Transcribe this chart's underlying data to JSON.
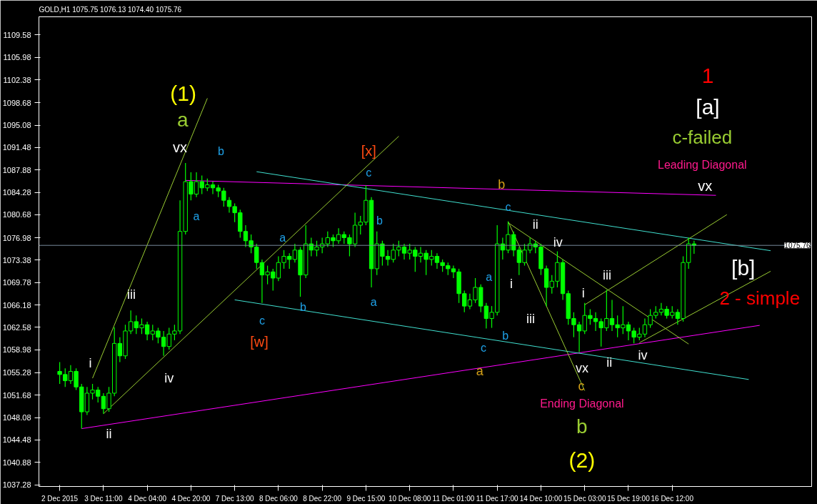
{
  "chart_data": {
    "type": "candlestick",
    "title": "GOLD,H1  1075.75 1076.13 1074.40 1075.76",
    "color": "#00ff00",
    "categories": [
      "2 Dec 2015",
      null,
      null,
      null,
      null,
      null,
      null,
      null,
      "3 Dec 11:00",
      null,
      null,
      null,
      null,
      null,
      null,
      null,
      "4 Dec 04:00",
      null,
      null,
      null,
      null,
      null,
      null,
      null,
      "4 Dec 20:00",
      null,
      null,
      null,
      null,
      null,
      null,
      null,
      "7 Dec 13:00",
      null,
      null,
      null,
      null,
      null,
      null,
      null,
      "8 Dec 06:00",
      null,
      null,
      null,
      null,
      null,
      null,
      null,
      "8 Dec 22:00",
      null,
      null,
      null,
      null,
      null,
      null,
      null,
      "9 Dec 15:00",
      null,
      null,
      null,
      null,
      null,
      null,
      null,
      "10 Dec 08:00",
      null,
      null,
      null,
      null,
      null,
      null,
      null,
      "11 Dec 01:00",
      null,
      null,
      null,
      null,
      null,
      null,
      null,
      "11 Dec 17:00",
      null,
      null,
      null,
      null,
      null,
      null,
      null,
      "14 Dec 10:00",
      null,
      null,
      null,
      null,
      null,
      null,
      null,
      "15 Dec 03:00",
      null,
      null,
      null,
      null,
      null,
      null,
      null,
      "15 Dec 19:00",
      null,
      null,
      null,
      null,
      null,
      null,
      null,
      "16 Dec 12:00",
      null,
      null,
      null,
      null,
      null,
      null,
      null,
      null,
      null,
      null,
      null,
      null,
      null,
      null,
      null,
      null,
      null,
      null
    ],
    "ohlc": [
      [
        1055.5,
        1057,
        1053.5,
        1055
      ],
      [
        1055,
        1056,
        1053,
        1054
      ],
      [
        1054,
        1056.5,
        1053.5,
        1055.5
      ],
      [
        1055.5,
        1056,
        1052.5,
        1053
      ],
      [
        1053,
        1053.5,
        1046.3,
        1049
      ],
      [
        1049,
        1053,
        1048.5,
        1052
      ],
      [
        1052,
        1053.5,
        1051,
        1052.5
      ],
      [
        1052.5,
        1053,
        1050.5,
        1051.5
      ],
      [
        1051.5,
        1052,
        1048.7,
        1049.5
      ],
      [
        1049.5,
        1053,
        1049,
        1052
      ],
      [
        1052,
        1062.6,
        1051.5,
        1060
      ],
      [
        1060,
        1061,
        1057,
        1058
      ],
      [
        1058,
        1063,
        1057.5,
        1062
      ],
      [
        1062,
        1065.3,
        1061.5,
        1063.5
      ],
      [
        1063.5,
        1064.5,
        1061.5,
        1062.5
      ],
      [
        1062.5,
        1064,
        1061.5,
        1063
      ],
      [
        1063,
        1063.5,
        1060.5,
        1061.5
      ],
      [
        1061.5,
        1063,
        1060.5,
        1062
      ],
      [
        1062,
        1062.5,
        1060,
        1061
      ],
      [
        1061,
        1062,
        1058,
        1059.5
      ],
      [
        1059.5,
        1062.5,
        1059,
        1061.5
      ],
      [
        1061.5,
        1063,
        1060.5,
        1062
      ],
      [
        1062,
        1083,
        1061.5,
        1078
      ],
      [
        1078,
        1089,
        1077.5,
        1086
      ],
      [
        1086,
        1087.5,
        1083,
        1084
      ],
      [
        1084,
        1087.5,
        1083.5,
        1086
      ],
      [
        1086,
        1087,
        1084,
        1085
      ],
      [
        1085,
        1086.5,
        1084.5,
        1085.5
      ],
      [
        1085.5,
        1086,
        1084,
        1085
      ],
      [
        1085,
        1085.5,
        1083.5,
        1084.5
      ],
      [
        1084.5,
        1085,
        1082,
        1083
      ],
      [
        1083,
        1083.5,
        1081,
        1082
      ],
      [
        1082,
        1082.5,
        1079.5,
        1081
      ],
      [
        1081,
        1081.5,
        1077,
        1078
      ],
      [
        1078,
        1079,
        1075.5,
        1076.5
      ],
      [
        1076.5,
        1077.5,
        1074.5,
        1075.5
      ],
      [
        1075.5,
        1076,
        1072,
        1073
      ],
      [
        1073,
        1073.5,
        1066.5,
        1071
      ],
      [
        1071,
        1072.5,
        1069.5,
        1071.5
      ],
      [
        1071.5,
        1072,
        1068.5,
        1070.5
      ],
      [
        1070.5,
        1074,
        1070,
        1073
      ],
      [
        1073,
        1075,
        1072,
        1074
      ],
      [
        1074,
        1074.5,
        1072,
        1073.5
      ],
      [
        1073.5,
        1076,
        1073,
        1075
      ],
      [
        1075,
        1075.5,
        1067.5,
        1071
      ],
      [
        1071,
        1079,
        1070.5,
        1076
      ],
      [
        1076,
        1077,
        1074,
        1075
      ],
      [
        1075,
        1076.5,
        1074,
        1075.5
      ],
      [
        1075.5,
        1077,
        1074.5,
        1076
      ],
      [
        1076,
        1078,
        1075.5,
        1077
      ],
      [
        1077,
        1077.5,
        1075.5,
        1076.5
      ],
      [
        1076.5,
        1078.5,
        1076,
        1077.5
      ],
      [
        1077.5,
        1078,
        1076,
        1077
      ],
      [
        1077,
        1077.5,
        1074,
        1076
      ],
      [
        1076,
        1081,
        1075.5,
        1079
      ],
      [
        1079,
        1080.5,
        1077.5,
        1079.5
      ],
      [
        1079.5,
        1085.4,
        1079,
        1083
      ],
      [
        1083,
        1083.5,
        1069,
        1072
      ],
      [
        1072,
        1078,
        1071,
        1076
      ],
      [
        1076,
        1076.5,
        1072.5,
        1074
      ],
      [
        1074,
        1075,
        1072.5,
        1073.5
      ],
      [
        1073.5,
        1076,
        1073,
        1075
      ],
      [
        1075,
        1076.5,
        1074,
        1075.5
      ],
      [
        1075.5,
        1076,
        1073.5,
        1074.5
      ],
      [
        1074.5,
        1076,
        1073.5,
        1075
      ],
      [
        1075,
        1075.5,
        1071.5,
        1074
      ],
      [
        1074,
        1075.5,
        1073,
        1074.5
      ],
      [
        1074.5,
        1075,
        1071,
        1073.5
      ],
      [
        1073.5,
        1075,
        1072.5,
        1074
      ],
      [
        1074,
        1074.5,
        1072,
        1073
      ],
      [
        1073,
        1073.5,
        1071.5,
        1072.5
      ],
      [
        1072.5,
        1073,
        1071,
        1072
      ],
      [
        1072,
        1072.5,
        1070.5,
        1071.5
      ],
      [
        1071.5,
        1072,
        1066.5,
        1068
      ],
      [
        1068,
        1068.5,
        1065,
        1066
      ],
      [
        1066,
        1068,
        1065.5,
        1067
      ],
      [
        1067,
        1070.5,
        1066.5,
        1069
      ],
      [
        1069,
        1069.5,
        1065,
        1066
      ],
      [
        1066,
        1066.5,
        1062.4,
        1064
      ],
      [
        1064,
        1066,
        1062.5,
        1065
      ],
      [
        1065,
        1079,
        1064.5,
        1076
      ],
      [
        1076,
        1077,
        1073.5,
        1075
      ],
      [
        1075,
        1079.6,
        1074.5,
        1077.5
      ],
      [
        1077.5,
        1078,
        1074,
        1075
      ],
      [
        1075,
        1075.5,
        1071,
        1073
      ],
      [
        1073,
        1076,
        1072.5,
        1075
      ],
      [
        1075,
        1077,
        1074.5,
        1076
      ],
      [
        1076,
        1076.5,
        1074.5,
        1075.5
      ],
      [
        1075.5,
        1076,
        1071,
        1072
      ],
      [
        1072,
        1072.5,
        1066,
        1069
      ],
      [
        1069,
        1071,
        1068,
        1070
      ],
      [
        1070,
        1074.8,
        1069,
        1073
      ],
      [
        1073,
        1073.5,
        1067,
        1068
      ],
      [
        1068,
        1068.5,
        1063,
        1064
      ],
      [
        1064,
        1065,
        1061,
        1063
      ],
      [
        1063,
        1063.5,
        1058.6,
        1062
      ],
      [
        1062,
        1066.5,
        1061.5,
        1064.5
      ],
      [
        1064.5,
        1065.5,
        1063,
        1064
      ],
      [
        1064,
        1065,
        1062,
        1063.5
      ],
      [
        1063.5,
        1064,
        1059.5,
        1062.5
      ],
      [
        1062.5,
        1068.6,
        1062,
        1064
      ],
      [
        1064,
        1067,
        1062,
        1063
      ],
      [
        1063,
        1064.5,
        1061,
        1062.5
      ],
      [
        1062.5,
        1066,
        1061.5,
        1063
      ],
      [
        1063,
        1063.5,
        1060.5,
        1062
      ],
      [
        1062,
        1062.5,
        1060,
        1061
      ],
      [
        1061,
        1062.5,
        1060.5,
        1061.5
      ],
      [
        1061.5,
        1064,
        1061,
        1063
      ],
      [
        1063,
        1065.5,
        1062.5,
        1064.5
      ],
      [
        1064.5,
        1066,
        1064,
        1065
      ],
      [
        1065,
        1066.5,
        1064.5,
        1065.5
      ],
      [
        1065.5,
        1066,
        1064,
        1064.5
      ],
      [
        1064.5,
        1066,
        1064,
        1065
      ],
      [
        1065,
        1065.5,
        1063,
        1064
      ],
      [
        1064,
        1074,
        1063.5,
        1073
      ],
      [
        1073,
        1077,
        1072,
        1076
      ],
      [
        1076,
        1076.5,
        1074.4,
        1075.76
      ],
      null,
      null,
      null,
      null,
      null,
      null,
      null,
      null,
      null,
      null,
      null,
      null,
      null,
      null
    ],
    "series": [
      {
        "type": "line",
        "color": "#ff00ff",
        "values": [
          null,
          null,
          null,
          null,
          1046.3,
          null,
          null,
          null,
          null,
          null,
          null,
          null,
          null,
          null,
          null,
          null,
          null,
          null,
          null,
          null,
          null,
          null,
          null,
          null,
          null,
          null,
          null,
          null,
          null,
          null,
          null,
          null,
          null,
          null,
          null,
          null,
          null,
          null,
          null,
          null,
          null,
          null,
          null,
          null,
          null,
          null,
          null,
          null,
          null,
          null,
          null,
          null,
          null,
          null,
          null,
          null,
          null,
          null,
          null,
          null,
          null,
          null,
          null,
          null,
          null,
          null,
          null,
          null,
          null,
          null,
          null,
          null,
          null,
          null,
          null,
          null,
          null,
          null,
          null,
          null,
          null,
          null,
          null,
          null,
          null,
          null,
          null,
          null,
          null,
          null,
          null,
          null,
          null,
          null,
          null,
          null,
          null,
          null,
          null,
          null,
          null,
          null,
          null,
          null,
          null,
          null,
          null,
          null,
          null,
          null,
          null,
          null,
          null,
          null,
          null,
          null,
          null,
          null,
          null,
          null,
          null,
          null,
          null,
          null,
          null,
          null,
          null,
          null,
          1062.9,
          null,
          null
        ]
      },
      {
        "type": "line",
        "color": "#ff00ff",
        "values": [
          null,
          null,
          null,
          null,
          null,
          null,
          null,
          null,
          null,
          null,
          null,
          null,
          null,
          null,
          null,
          null,
          null,
          null,
          null,
          null,
          null,
          null,
          null,
          1086.2,
          null,
          null,
          null,
          null,
          null,
          null,
          null,
          null,
          null,
          null,
          null,
          null,
          null,
          null,
          null,
          null,
          null,
          null,
          null,
          null,
          null,
          null,
          null,
          null,
          null,
          null,
          null,
          null,
          null,
          null,
          null,
          null,
          null,
          null,
          null,
          null,
          null,
          null,
          null,
          null,
          null,
          null,
          null,
          null,
          null,
          null,
          null,
          null,
          null,
          null,
          null,
          null,
          null,
          null,
          null,
          null,
          null,
          null,
          null,
          null,
          null,
          null,
          null,
          null,
          null,
          null,
          null,
          null,
          null,
          null,
          null,
          null,
          null,
          null,
          null,
          null,
          null,
          null,
          null,
          null,
          null,
          null,
          null,
          null,
          null,
          null,
          null,
          null,
          null,
          null,
          null,
          null,
          null,
          null,
          null,
          null,
          1083.8,
          null,
          null,
          null,
          null,
          null,
          null,
          null,
          null,
          null,
          null
        ]
      },
      {
        "type": "line",
        "color": "#40e0d0",
        "values": [
          null,
          null,
          null,
          null,
          null,
          null,
          null,
          null,
          null,
          null,
          null,
          null,
          null,
          null,
          null,
          null,
          null,
          null,
          null,
          null,
          null,
          null,
          null,
          null,
          null,
          null,
          null,
          null,
          null,
          null,
          null,
          null,
          null,
          null,
          null,
          null,
          1087.6,
          null,
          null,
          null,
          null,
          null,
          null,
          null,
          null,
          null,
          null,
          null,
          null,
          null,
          null,
          null,
          null,
          null,
          null,
          null,
          null,
          null,
          null,
          null,
          null,
          null,
          null,
          null,
          null,
          null,
          null,
          null,
          null,
          null,
          null,
          null,
          null,
          null,
          null,
          null,
          null,
          null,
          null,
          null,
          null,
          null,
          null,
          null,
          null,
          null,
          null,
          null,
          null,
          null,
          null,
          null,
          null,
          null,
          null,
          null,
          null,
          null,
          null,
          null,
          null,
          null,
          null,
          null,
          null,
          null,
          null,
          null,
          null,
          null,
          null,
          null,
          null,
          null,
          null,
          null,
          null,
          null,
          null,
          null,
          null,
          null,
          null,
          null,
          null,
          null,
          null,
          null,
          null,
          null,
          1074.9
        ]
      },
      {
        "type": "line",
        "color": "#40e0d0",
        "values": [
          null,
          null,
          null,
          null,
          null,
          null,
          null,
          null,
          null,
          null,
          null,
          null,
          null,
          null,
          null,
          null,
          null,
          null,
          null,
          null,
          null,
          null,
          null,
          null,
          null,
          null,
          null,
          null,
          null,
          null,
          null,
          null,
          1067.0,
          null,
          null,
          null,
          null,
          null,
          null,
          null,
          null,
          null,
          null,
          null,
          null,
          null,
          null,
          null,
          null,
          null,
          null,
          null,
          null,
          null,
          null,
          null,
          null,
          null,
          null,
          null,
          null,
          null,
          null,
          null,
          null,
          null,
          null,
          null,
          null,
          null,
          null,
          null,
          null,
          null,
          null,
          null,
          null,
          null,
          null,
          null,
          null,
          null,
          null,
          null,
          null,
          null,
          null,
          null,
          null,
          null,
          null,
          null,
          null,
          null,
          null,
          null,
          null,
          null,
          null,
          null,
          null,
          null,
          null,
          null,
          null,
          null,
          null,
          null,
          null,
          null,
          null,
          null,
          null,
          null,
          null,
          null,
          null,
          null,
          null,
          null,
          null,
          null,
          null,
          null,
          null,
          null,
          1054.2,
          null,
          null,
          null,
          null
        ]
      },
      {
        "type": "line",
        "color": "#9acd32",
        "values": [
          null,
          null,
          null,
          null,
          null,
          null,
          1054.4,
          null,
          null,
          null,
          null,
          null,
          null,
          null,
          null,
          null,
          null,
          null,
          null,
          null,
          null,
          null,
          null,
          null,
          null,
          null,
          null,
          1099.4,
          null,
          null,
          null,
          null,
          null,
          null,
          null,
          null,
          null,
          null,
          null,
          null,
          null,
          null,
          null,
          null,
          null,
          null,
          null,
          null,
          null,
          null,
          null,
          null,
          null,
          null,
          null,
          null,
          null,
          null,
          null,
          null,
          null,
          null,
          null,
          null,
          null,
          null,
          null,
          null,
          null,
          null,
          null,
          null,
          null,
          null,
          null,
          null,
          null,
          null,
          null,
          null,
          null,
          null,
          null,
          null,
          null,
          null,
          null,
          null,
          null,
          null,
          null,
          null,
          null,
          null,
          null,
          null,
          null,
          null,
          null,
          null,
          null,
          null,
          null,
          null,
          null,
          null,
          null,
          null,
          null,
          null,
          null,
          null,
          null,
          null,
          null,
          null,
          null,
          null,
          null,
          null,
          null,
          null,
          null,
          null,
          null,
          null,
          null,
          null,
          null,
          null,
          null
        ]
      },
      {
        "type": "line",
        "color": "#9acd32",
        "values": [
          null,
          null,
          null,
          null,
          null,
          null,
          null,
          null,
          1048.7,
          null,
          null,
          null,
          null,
          null,
          null,
          null,
          null,
          null,
          null,
          null,
          null,
          null,
          null,
          null,
          null,
          null,
          null,
          null,
          null,
          null,
          null,
          null,
          null,
          null,
          null,
          null,
          null,
          null,
          null,
          null,
          null,
          null,
          null,
          null,
          null,
          null,
          null,
          null,
          null,
          null,
          null,
          null,
          null,
          null,
          null,
          null,
          null,
          null,
          null,
          null,
          null,
          null,
          1093.3,
          null,
          null,
          null,
          null,
          null,
          null,
          null,
          null,
          null,
          null,
          null,
          null,
          null,
          null,
          null,
          null,
          null,
          null,
          null,
          null,
          null,
          null,
          null,
          null,
          null,
          null,
          null,
          null,
          null,
          null,
          null,
          null,
          null,
          null,
          null,
          null,
          null,
          null,
          null,
          null,
          null,
          null,
          null,
          null,
          null,
          null,
          null,
          null,
          null,
          null,
          null,
          null,
          null,
          null,
          null,
          null,
          null,
          null,
          null,
          null,
          null,
          null,
          null,
          null,
          null,
          null,
          null,
          null
        ]
      },
      {
        "type": "line",
        "color": "#9acd32",
        "values": [
          null,
          null,
          null,
          null,
          null,
          null,
          null,
          null,
          null,
          null,
          null,
          null,
          null,
          null,
          null,
          null,
          null,
          null,
          null,
          null,
          null,
          null,
          null,
          null,
          null,
          null,
          null,
          null,
          null,
          null,
          null,
          null,
          null,
          null,
          null,
          null,
          null,
          null,
          null,
          null,
          null,
          null,
          null,
          null,
          null,
          null,
          null,
          null,
          null,
          null,
          null,
          null,
          null,
          null,
          null,
          null,
          null,
          null,
          null,
          null,
          null,
          null,
          null,
          null,
          null,
          null,
          null,
          null,
          null,
          null,
          null,
          null,
          null,
          null,
          null,
          null,
          null,
          null,
          null,
          null,
          null,
          null,
          1079.6,
          null,
          null,
          null,
          null,
          null,
          null,
          null,
          null,
          null,
          null,
          null,
          null,
          null,
          1052.4,
          null,
          null,
          null,
          null,
          null,
          null,
          null,
          null,
          null,
          null,
          null,
          null,
          null,
          null,
          null,
          null,
          null,
          null,
          null,
          null,
          null,
          null,
          null,
          null,
          null,
          null,
          null,
          null,
          null,
          null,
          null,
          null,
          null,
          null
        ]
      },
      {
        "type": "line",
        "color": "#9acd32",
        "values": [
          null,
          null,
          null,
          null,
          null,
          null,
          null,
          null,
          null,
          null,
          null,
          null,
          null,
          null,
          null,
          null,
          null,
          null,
          null,
          null,
          null,
          null,
          null,
          null,
          null,
          null,
          null,
          null,
          null,
          null,
          null,
          null,
          null,
          null,
          null,
          null,
          null,
          null,
          null,
          null,
          null,
          null,
          null,
          null,
          null,
          null,
          null,
          null,
          null,
          null,
          null,
          null,
          null,
          null,
          null,
          null,
          null,
          null,
          null,
          null,
          null,
          null,
          null,
          null,
          null,
          null,
          null,
          null,
          null,
          null,
          null,
          null,
          null,
          null,
          null,
          null,
          null,
          null,
          null,
          null,
          null,
          null,
          1079.4,
          null,
          null,
          null,
          null,
          null,
          null,
          null,
          null,
          null,
          null,
          null,
          null,
          null,
          null,
          null,
          null,
          null,
          null,
          null,
          null,
          null,
          null,
          null,
          null,
          null,
          null,
          null,
          null,
          null,
          null,
          null,
          null,
          1059.9,
          null,
          null,
          null,
          null,
          null,
          null,
          null,
          null,
          null,
          null,
          null,
          null,
          null,
          null,
          null
        ]
      },
      {
        "type": "line",
        "color": "#9acd32",
        "values": [
          null,
          null,
          null,
          null,
          null,
          null,
          null,
          null,
          null,
          null,
          null,
          null,
          null,
          null,
          null,
          null,
          null,
          null,
          null,
          null,
          null,
          null,
          null,
          null,
          null,
          null,
          null,
          null,
          null,
          null,
          null,
          null,
          null,
          null,
          null,
          null,
          null,
          null,
          null,
          null,
          null,
          null,
          null,
          null,
          null,
          null,
          null,
          null,
          null,
          null,
          null,
          null,
          null,
          null,
          null,
          null,
          null,
          null,
          null,
          null,
          null,
          null,
          null,
          null,
          null,
          null,
          null,
          null,
          null,
          null,
          null,
          null,
          null,
          null,
          null,
          null,
          null,
          null,
          null,
          null,
          null,
          null,
          null,
          null,
          null,
          null,
          null,
          null,
          null,
          null,
          null,
          null,
          null,
          null,
          null,
          null,
          1066.2,
          null,
          null,
          null,
          null,
          null,
          null,
          null,
          null,
          null,
          null,
          null,
          null,
          null,
          null,
          null,
          null,
          null,
          null,
          null,
          null,
          null,
          null,
          null,
          null,
          null,
          1080.7,
          null,
          null,
          null,
          null,
          null,
          null,
          null,
          null
        ]
      },
      {
        "type": "line",
        "color": "#9acd32",
        "values": [
          null,
          null,
          null,
          null,
          null,
          null,
          null,
          null,
          null,
          null,
          null,
          null,
          null,
          null,
          null,
          null,
          null,
          null,
          null,
          null,
          null,
          null,
          null,
          null,
          null,
          null,
          null,
          null,
          null,
          null,
          null,
          null,
          null,
          null,
          null,
          null,
          null,
          null,
          null,
          null,
          null,
          null,
          null,
          null,
          null,
          null,
          null,
          null,
          null,
          null,
          null,
          null,
          null,
          null,
          null,
          null,
          null,
          null,
          null,
          null,
          null,
          null,
          null,
          null,
          null,
          null,
          null,
          null,
          null,
          null,
          null,
          null,
          null,
          null,
          null,
          null,
          null,
          null,
          null,
          null,
          null,
          null,
          null,
          null,
          null,
          null,
          null,
          null,
          null,
          null,
          null,
          null,
          null,
          null,
          null,
          null,
          null,
          null,
          null,
          null,
          null,
          null,
          null,
          null,
          null,
          null,
          1060.1,
          null,
          null,
          null,
          null,
          null,
          null,
          null,
          null,
          null,
          null,
          null,
          null,
          null,
          null,
          null,
          null,
          null,
          null,
          null,
          null,
          null,
          null,
          null,
          1071.6
        ]
      }
    ],
    "ylim": [
      1037.0,
      1112.5
    ],
    "yticks": [
      1037.28,
      1040.88,
      1044.48,
      1048.08,
      1051.68,
      1055.28,
      1058.98,
      1062.58,
      1066.18,
      1069.78,
      1073.38,
      1076.98,
      1080.68,
      1084.28,
      1087.88,
      1091.48,
      1095.08,
      1098.68,
      1102.38,
      1105.98,
      1109.58
    ],
    "ref_lines": [
      {
        "axis": "y",
        "value": 1075.76,
        "label": "1075.76",
        "color": "#778899"
      }
    ],
    "annotations": [
      "(1)",
      "a",
      "vx",
      "b",
      "a",
      "iii",
      "i",
      "iv",
      "ii",
      "a",
      "c",
      "[w]",
      "b",
      "[x]",
      "c",
      "b",
      "a",
      "b",
      "c",
      "ii",
      "iv",
      "a",
      "i",
      "iii",
      "b",
      "c",
      "a",
      "vx",
      "c",
      "Ending Diagonal",
      "b",
      "(2)",
      "i",
      "iii",
      "ii",
      "iv",
      "1",
      "[a]",
      "c-failed",
      "Leading Diagonal",
      "vx",
      "[b]",
      "2 - simple"
    ]
  }
}
